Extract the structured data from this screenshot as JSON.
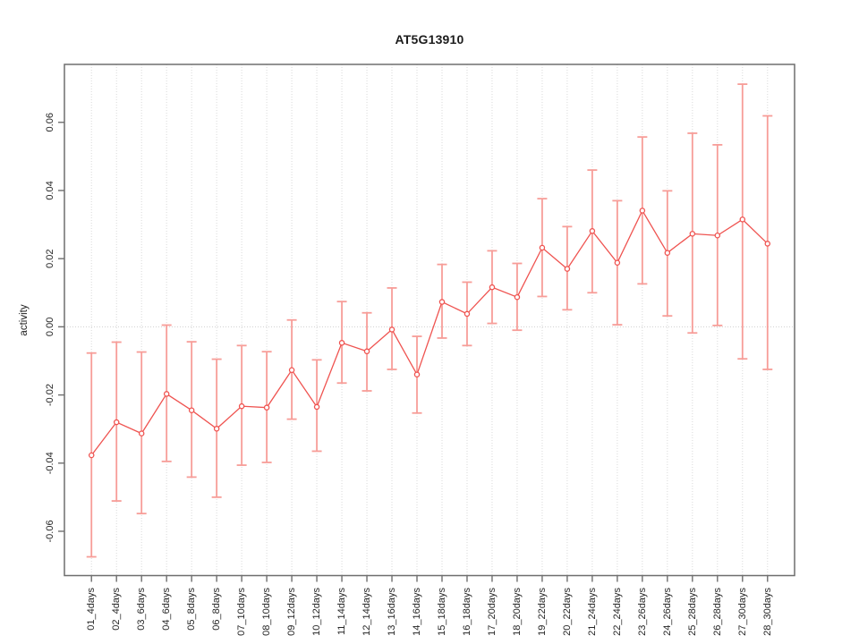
{
  "chart_data": {
    "type": "scatter",
    "subtype": "points-with-error-bars",
    "title": "AT5G13910",
    "xlabel": "",
    "ylabel": "activity",
    "ylim": [
      -0.073,
      0.077
    ],
    "yticks": [
      -0.06,
      -0.04,
      -0.02,
      0.0,
      0.02,
      0.04,
      0.06
    ],
    "ytick_labels": [
      "-0.06",
      "-0.04",
      "-0.02",
      "0.00",
      "0.02",
      "0.04",
      "0.06"
    ],
    "grid": {
      "vertical_dotted_per_category": true,
      "horizontal_dotted_zero_line": true
    },
    "legend": "none",
    "categories": [
      "01_4days",
      "02_4days",
      "03_6days",
      "04_6days",
      "05_8days",
      "06_8days",
      "07_10days",
      "08_10days",
      "09_12days",
      "10_12days",
      "11_14days",
      "12_14days",
      "13_16days",
      "14_16days",
      "15_18days",
      "16_18days",
      "17_20days",
      "18_20days",
      "19_22days",
      "20_22days",
      "21_24days",
      "22_24days",
      "23_26days",
      "24_26days",
      "25_28days",
      "26_28days",
      "27_30days",
      "28_30days"
    ],
    "series": [
      {
        "name": "activity",
        "values": [
          -0.0377,
          -0.028,
          -0.0313,
          -0.0197,
          -0.0245,
          -0.0299,
          -0.0233,
          -0.0237,
          -0.0127,
          -0.0235,
          -0.0047,
          -0.0072,
          -0.0008,
          -0.014,
          0.0073,
          0.0038,
          0.0116,
          0.0087,
          0.0232,
          0.017,
          0.0281,
          0.0188,
          0.0341,
          0.0217,
          0.0273,
          0.0268,
          0.0315,
          0.0244
        ],
        "upper": [
          -0.0077,
          -0.0045,
          -0.0074,
          0.0005,
          -0.0044,
          -0.0095,
          -0.0055,
          -0.0073,
          0.002,
          -0.0097,
          0.0074,
          0.0041,
          0.0114,
          -0.0028,
          0.0183,
          0.0131,
          0.0223,
          0.0186,
          0.0376,
          0.0294,
          0.046,
          0.037,
          0.0557,
          0.0399,
          0.0568,
          0.0534,
          0.0712,
          0.0619
        ],
        "lower": [
          -0.0675,
          -0.0511,
          -0.0548,
          -0.0395,
          -0.0441,
          -0.05,
          -0.0406,
          -0.0398,
          -0.0271,
          -0.0365,
          -0.0165,
          -0.0188,
          -0.0125,
          -0.0253,
          -0.0033,
          -0.0055,
          0.001,
          -0.001,
          0.0089,
          0.005,
          0.01,
          0.0006,
          0.0126,
          0.0032,
          -0.0018,
          0.0004,
          -0.0094,
          -0.0125
        ]
      }
    ],
    "colors": {
      "point": "#ef5350",
      "line": "#ef5350",
      "error_bar": "#f79d98",
      "grid": "#d9d9d9",
      "zero_line": "#cfcfcf",
      "axis": "#6e6e6e",
      "text": "#262626",
      "background": "#ffffff"
    }
  }
}
